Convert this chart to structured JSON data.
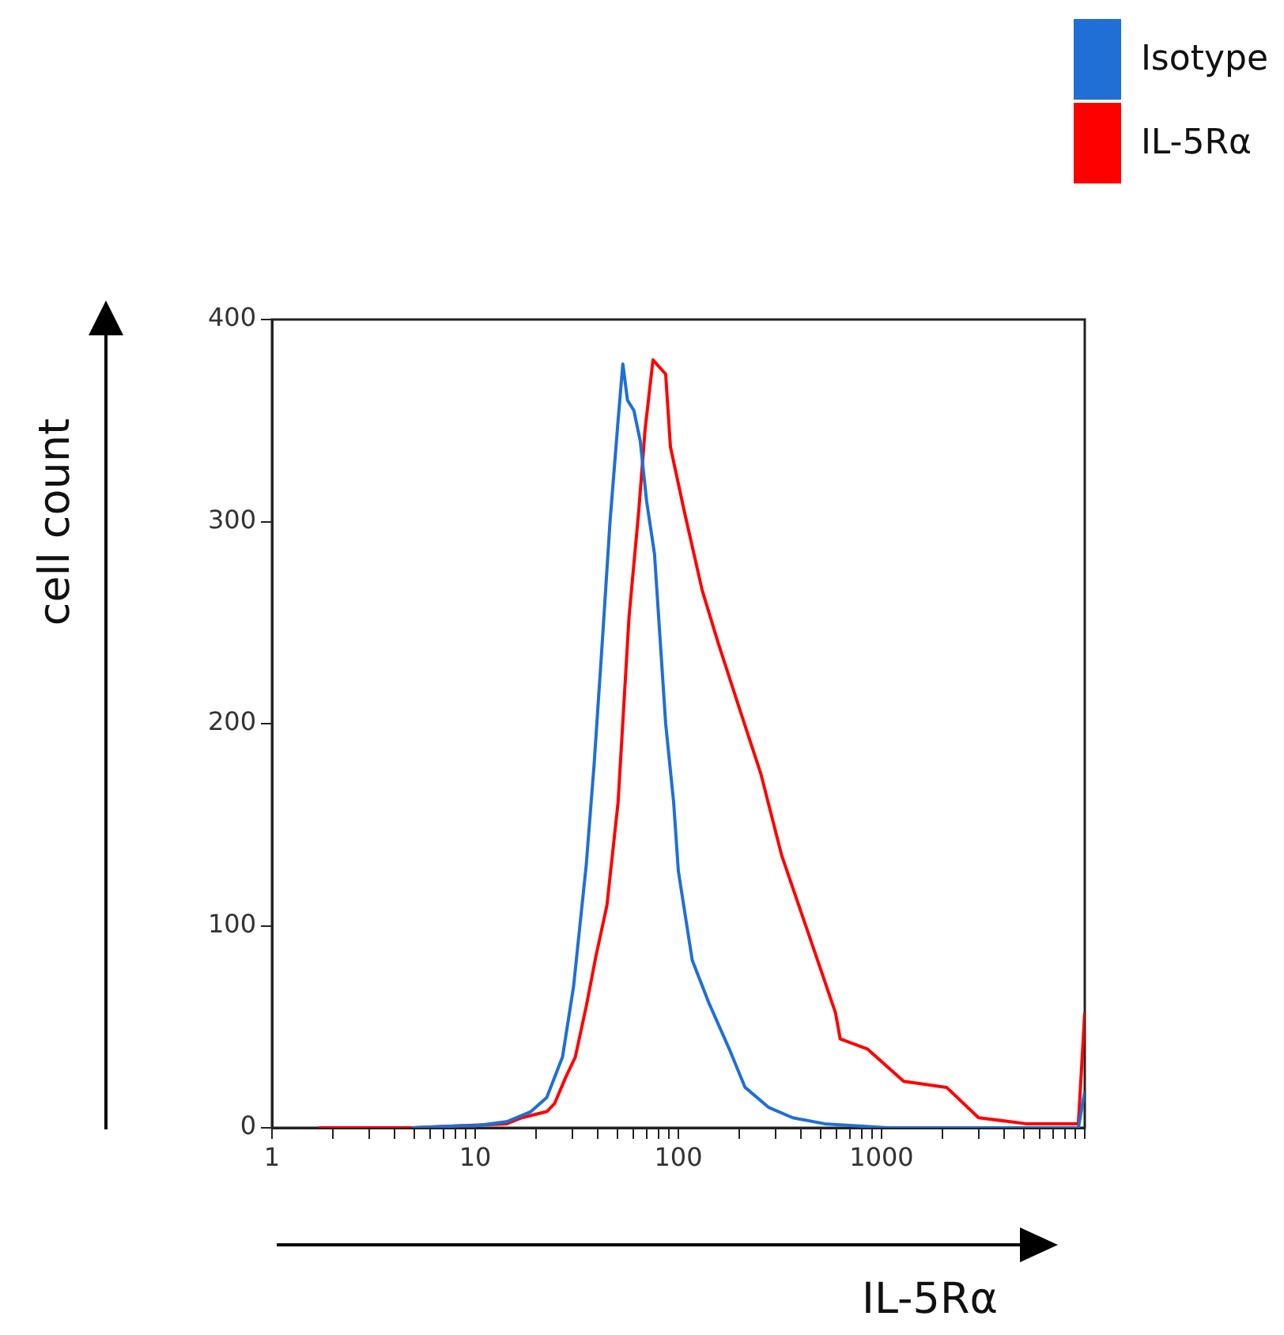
{
  "chart_data": {
    "type": "line",
    "xlabel": "IL-5Rα",
    "ylabel": "cell count",
    "log": "x",
    "legend": "top right",
    "marker": "none",
    "xlim": [
      1,
      10000
    ],
    "ylim": [
      0,
      400
    ],
    "xticks": [
      1,
      {
        "value": 2,
        "label": null
      },
      {
        "value": 3,
        "label": null
      },
      {
        "value": 4,
        "label": null
      },
      {
        "value": 5,
        "label": null
      },
      {
        "value": 6,
        "label": null
      },
      {
        "value": 7,
        "label": null
      },
      {
        "value": 8,
        "label": null
      },
      {
        "value": 9,
        "label": null
      },
      10,
      {
        "value": 20,
        "label": null
      },
      {
        "value": 30,
        "label": null
      },
      {
        "value": 40,
        "label": null
      },
      {
        "value": 50,
        "label": null
      },
      {
        "value": 60,
        "label": null
      },
      {
        "value": 70,
        "label": null
      },
      {
        "value": 80,
        "label": null
      },
      {
        "value": 90,
        "label": null
      },
      100,
      {
        "value": 200,
        "label": null
      },
      {
        "value": 300,
        "label": null
      },
      {
        "value": 400,
        "label": null
      },
      {
        "value": 500,
        "label": null
      },
      {
        "value": 600,
        "label": null
      },
      {
        "value": 700,
        "label": null
      },
      {
        "value": 800,
        "label": null
      },
      {
        "value": 900,
        "label": null
      },
      1000,
      {
        "value": 2000,
        "label": null
      },
      {
        "value": 3000,
        "label": null
      },
      {
        "value": 4000,
        "label": null
      },
      {
        "value": 5000,
        "label": null
      },
      {
        "value": 6000,
        "label": null
      },
      {
        "value": 7000,
        "label": null
      },
      {
        "value": 8000,
        "label": null
      },
      {
        "value": 9000,
        "label": null
      },
      {
        "value": 10000,
        "label": null
      }
    ],
    "yticks": [
      0,
      100,
      200,
      300,
      400
    ],
    "series": [
      {
        "name": "Isotype",
        "color": "#1f6fd6",
        "x": [
          4.9,
          8.4,
          10,
          14.3,
          18.8,
          22.5,
          26.9,
          30.5,
          35.2,
          38.5,
          42.2,
          46.1,
          50.5,
          53.3,
          56.2,
          60.4,
          64.9,
          69.8,
          76.3,
          86.6,
          94.8,
          100,
          117,
          141,
          178,
          213,
          279,
          365,
          523,
          750,
          1075,
          9300,
          10000
        ],
        "values": [
          0,
          1,
          1,
          3,
          8,
          15,
          35,
          70,
          130,
          180,
          240,
          300,
          350,
          378,
          360,
          355,
          340,
          310,
          284,
          200,
          161,
          127,
          83,
          62,
          39,
          20,
          10,
          5,
          2,
          1,
          0,
          0,
          18
        ]
      },
      {
        "name": "IL-5Rα",
        "color": "#ff0000",
        "x": [
          1.7,
          4.9,
          8.4,
          14.3,
          17,
          22.5,
          24.6,
          27.9,
          31.1,
          35.2,
          39.3,
          44.5,
          50.5,
          57.2,
          63.8,
          68.5,
          75,
          86.6,
          91.4,
          107,
          131,
          157,
          202,
          255,
          322,
          437,
          593,
          626,
          851,
          1285,
          2090,
          3000,
          5140,
          9300,
          10000
        ],
        "values": [
          0,
          0,
          1,
          2,
          5,
          8,
          12,
          25,
          35,
          60,
          85,
          110,
          161,
          253,
          305,
          345,
          380,
          373,
          337,
          305,
          266,
          240,
          206,
          175,
          135,
          96,
          57,
          44,
          39,
          23,
          20,
          5,
          2,
          2,
          57
        ]
      }
    ]
  }
}
